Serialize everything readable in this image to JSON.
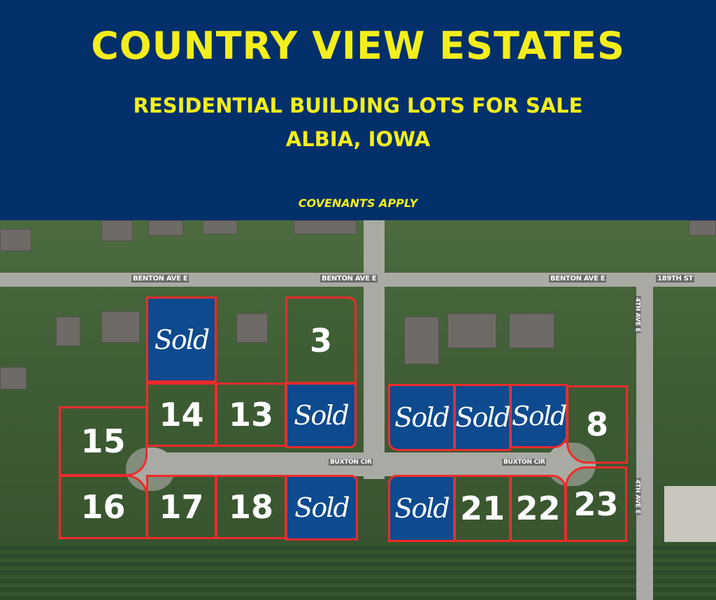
{
  "header": {
    "title": "COUNTRY VIEW ESTATES",
    "subtitle": "RESIDENTIAL BUILDING LOTS FOR SALE",
    "location": "ALBIA, IOWA",
    "note": "COVENANTS APPLY",
    "bg_color": "#03306b",
    "text_color": "#f4ee1c"
  },
  "streets": {
    "benton1": "BENTON AVE E",
    "benton2": "BENTON AVE E",
    "benton3": "BENTON AVE E",
    "st189": "189TH ST",
    "buxton1": "BUXTON CIR",
    "buxton2": "BUXTON CIR",
    "fourth1": "4TH AVE E",
    "fourth2": "4TH AVE E"
  },
  "lots": [
    {
      "label": "Sold",
      "status": "sold"
    },
    {
      "label": "3",
      "status": "available"
    },
    {
      "label": "14",
      "status": "available"
    },
    {
      "label": "13",
      "status": "available"
    },
    {
      "label": "Sold",
      "status": "sold"
    },
    {
      "label": "15",
      "status": "available"
    },
    {
      "label": "16",
      "status": "available"
    },
    {
      "label": "17",
      "status": "available"
    },
    {
      "label": "18",
      "status": "available"
    },
    {
      "label": "Sold",
      "status": "sold"
    },
    {
      "label": "Sold",
      "status": "sold"
    },
    {
      "label": "Sold",
      "status": "sold"
    },
    {
      "label": "Sold",
      "status": "sold"
    },
    {
      "label": "8",
      "status": "available"
    },
    {
      "label": "Sold",
      "status": "sold"
    },
    {
      "label": "21",
      "status": "available"
    },
    {
      "label": "22",
      "status": "available"
    },
    {
      "label": "23",
      "status": "available"
    }
  ],
  "colors": {
    "lot_border": "#ee2b2b",
    "sold_fill": "#0e4a8e"
  }
}
